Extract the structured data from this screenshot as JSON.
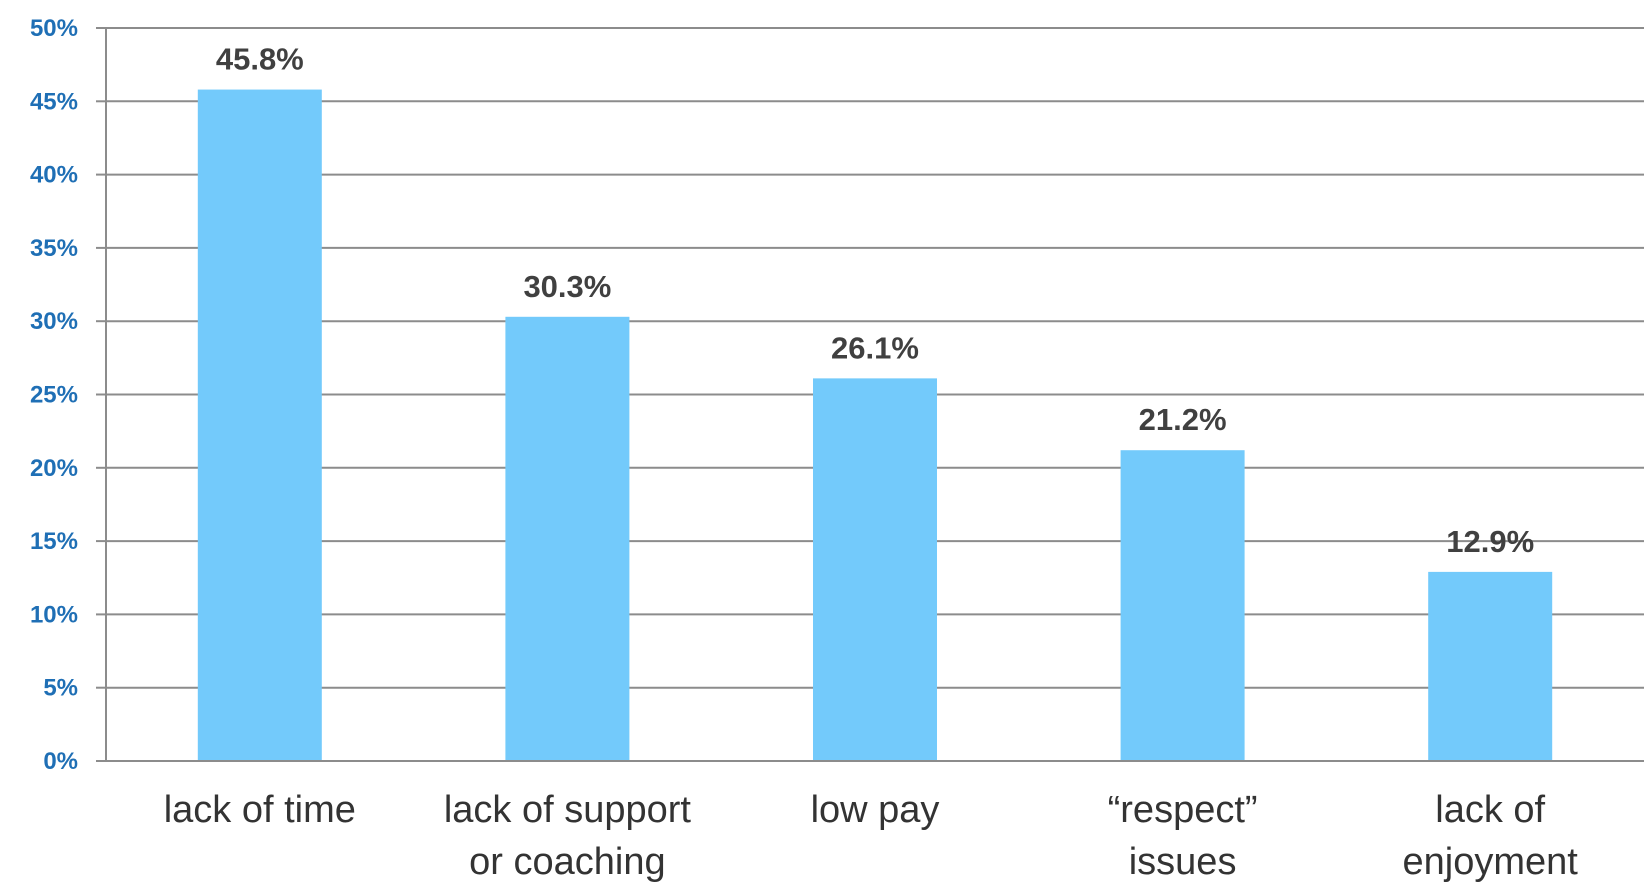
{
  "chart_data": {
    "type": "bar",
    "categories": [
      [
        "lack of time"
      ],
      [
        "lack of support",
        "or coaching"
      ],
      [
        "low pay"
      ],
      [
        "“respect”",
        "issues"
      ],
      [
        "lack of",
        "enjoyment"
      ]
    ],
    "values": [
      45.8,
      30.3,
      26.1,
      21.2,
      12.9
    ],
    "data_labels": [
      "45.8%",
      "30.3%",
      "26.1%",
      "21.2%",
      "12.9%"
    ],
    "y_ticks": [
      "0%",
      "5%",
      "10%",
      "15%",
      "20%",
      "25%",
      "30%",
      "35%",
      "40%",
      "45%",
      "50%"
    ],
    "ylim": [
      0,
      50
    ],
    "y_tick_step": 5,
    "grid": true,
    "bar_color": "#73cafb",
    "title": "",
    "xlabel": "",
    "ylabel": ""
  }
}
